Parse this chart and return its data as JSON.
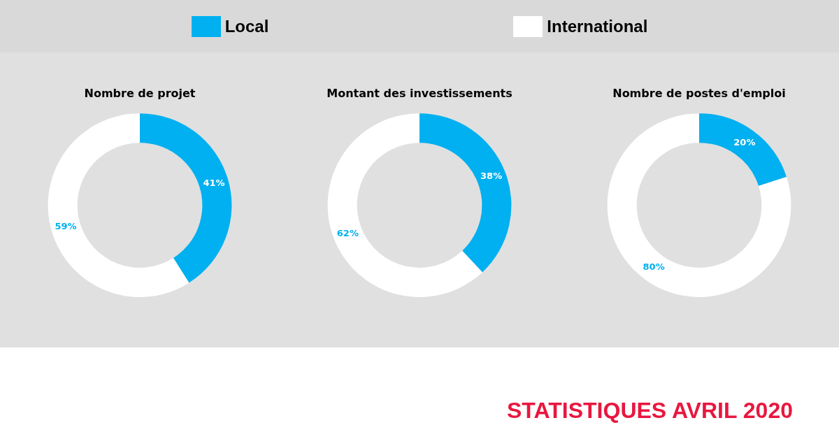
{
  "chart_data": [
    {
      "type": "donut",
      "title": "Nombre de projet",
      "categories": [
        "Local",
        "International"
      ],
      "values": [
        41,
        59
      ],
      "colors": [
        "#00b0f0",
        "#ffffff"
      ],
      "value_labels": [
        "41%",
        "59%"
      ],
      "legend": "top"
    },
    {
      "type": "donut",
      "title": "Montant des investissements",
      "categories": [
        null,
        null
      ],
      "values": [
        38,
        62
      ],
      "colors": [
        "#00b0f0",
        "#ffffff"
      ],
      "value_labels": [
        "38%",
        "62%"
      ]
    },
    {
      "type": "donut",
      "title": "Nombre de postes d'emploi",
      "categories": [
        null,
        null
      ],
      "values": [
        20,
        80
      ],
      "colors": [
        "#00b0f0",
        "#ffffff"
      ],
      "value_labels": [
        "20%",
        "80%"
      ],
      "annotations": [
        "STATISTIQUES AVRIL 2020"
      ]
    }
  ]
}
